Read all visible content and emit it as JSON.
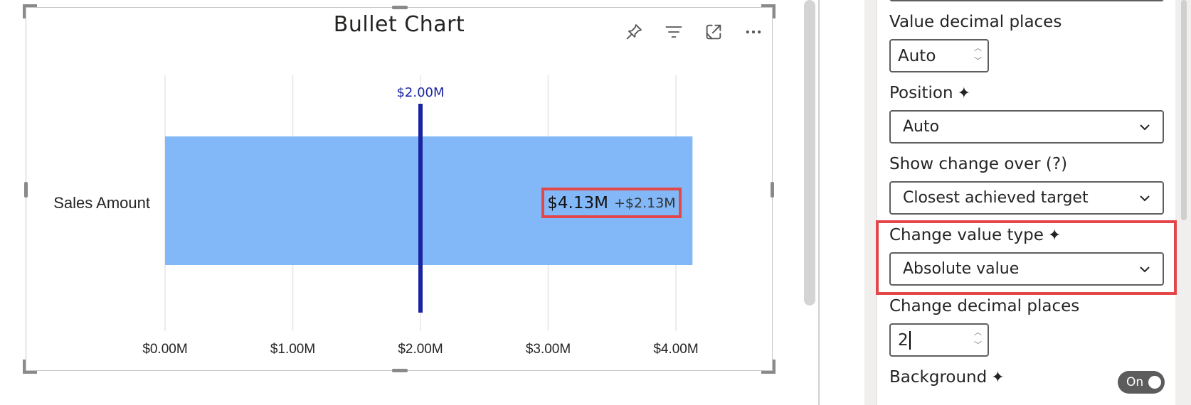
{
  "visual": {
    "title": "Bullet Chart",
    "header_icons": [
      "pin-icon",
      "filter-icon",
      "focus-mode-icon",
      "more-options-icon"
    ]
  },
  "chart_data": {
    "type": "bar",
    "orientation": "horizontal",
    "categories": [
      "Sales Amount"
    ],
    "values": [
      4.13
    ],
    "target": 2.0,
    "target_label": "$2.00M",
    "x_ticks": [
      0,
      1,
      2,
      3,
      4
    ],
    "x_tick_labels": [
      "$0.00M",
      "$1.00M",
      "$2.00M",
      "$3.00M",
      "$4.00M"
    ],
    "xlim": [
      0,
      4.13
    ],
    "grid": true,
    "value_label": "$4.13M",
    "change_label": "+$2.13M",
    "colors": {
      "bar": "#82b8f8",
      "target": "#1a24a0",
      "target_label": "#1a24a0",
      "grid": "#e6e6e6"
    }
  },
  "pane": {
    "value_decimal_places": {
      "label": "Value decimal places",
      "value": "Auto"
    },
    "position": {
      "label": "Position",
      "value": "Auto"
    },
    "show_change_over": {
      "label": "Show change over (?)",
      "value": "Closest achieved target"
    },
    "change_value_type": {
      "label": "Change value type",
      "value": "Absolute value"
    },
    "change_decimal_places": {
      "label": "Change decimal places",
      "value": "2"
    },
    "background": {
      "label": "Background",
      "toggle": "On"
    },
    "sparkle": "✦"
  },
  "colors": {
    "highlight": "#e3474a",
    "toggle_bg": "#5c5c5c"
  }
}
